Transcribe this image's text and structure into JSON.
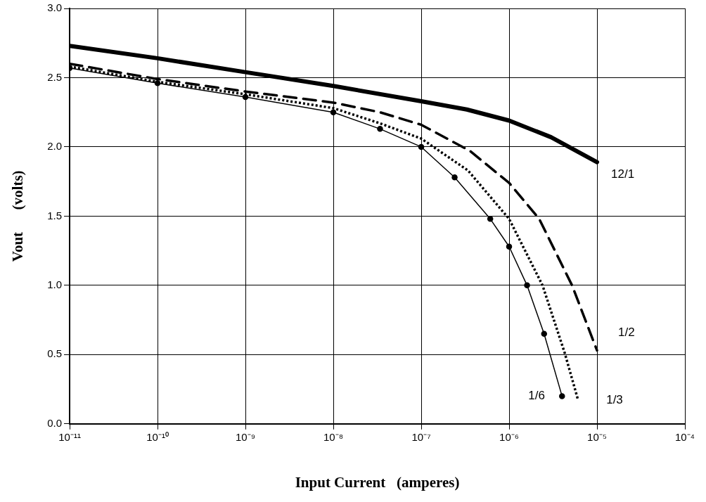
{
  "chart_data": {
    "type": "line",
    "xlabel": "Input Current   (amperes)",
    "ylabel": "Vout      (volts)",
    "log": "x",
    "grid": true,
    "legend": false,
    "xlim": [
      1e-11,
      0.0001
    ],
    "xticks": [
      {
        "value": 1e-11,
        "label": "10⁻¹¹"
      },
      {
        "value": 1e-10,
        "label": "10⁻¹⁰"
      },
      {
        "value": 1e-09,
        "label": "10⁻⁹"
      },
      {
        "value": 1e-08,
        "label": "10⁻⁸"
      },
      {
        "value": 1e-07,
        "label": "10⁻⁷"
      },
      {
        "value": 1e-06,
        "label": "10⁻⁶"
      },
      {
        "value": 1e-05,
        "label": "10⁻⁵"
      },
      {
        "value": 0.0001,
        "label": "10⁻⁴"
      }
    ],
    "ylim": [
      0,
      3
    ],
    "yticks": [
      {
        "value": 0,
        "label": "0.0"
      },
      {
        "value": 0.5,
        "label": "0.5"
      },
      {
        "value": 1,
        "label": "1.0"
      },
      {
        "value": 1.5,
        "label": "1.5"
      },
      {
        "value": 2,
        "label": "2.0"
      },
      {
        "value": 2.5,
        "label": "2.5"
      },
      {
        "value": 3,
        "label": "3.0"
      }
    ],
    "series": [
      {
        "name": "12/1",
        "color": "#000000",
        "line_style": "solid",
        "marker": "none",
        "x": [
          1e-11,
          1e-10,
          1e-09,
          1e-08,
          1e-07,
          3.3e-07,
          1e-06,
          3e-06,
          1e-05
        ],
        "values": [
          2.73,
          2.64,
          2.54,
          2.44,
          2.33,
          2.27,
          2.19,
          2.07,
          1.89
        ]
      },
      {
        "name": "1/2",
        "color": "#000000",
        "line_style": "dashed",
        "marker": "none",
        "x": [
          1e-11,
          1e-10,
          1e-09,
          1e-08,
          3.4e-08,
          1e-07,
          3.6e-07,
          1e-06,
          2.2e-06,
          5.2e-06,
          1e-05
        ],
        "values": [
          2.6,
          2.49,
          2.4,
          2.32,
          2.25,
          2.16,
          1.97,
          1.74,
          1.48,
          1.0,
          0.53
        ]
      },
      {
        "name": "1/3",
        "color": "#000000",
        "line_style": "dotted",
        "marker": "none",
        "x": [
          1e-11,
          1e-10,
          1e-09,
          1e-08,
          3.4e-08,
          1e-07,
          3.4e-07,
          1e-06,
          2.4e-06,
          4.3e-06,
          6.1e-06
        ],
        "values": [
          2.58,
          2.47,
          2.38,
          2.28,
          2.17,
          2.06,
          1.83,
          1.48,
          1.0,
          0.51,
          0.17
        ]
      },
      {
        "name": "1/6",
        "color": "#000000",
        "line_style": "solid",
        "marker": "circle",
        "x": [
          1e-11,
          1e-10,
          1e-09,
          1e-08,
          3.4e-08,
          1e-07,
          2.4e-07,
          6.1e-07,
          1e-06,
          1.6e-06,
          2.5e-06,
          4e-06
        ],
        "values": [
          2.57,
          2.46,
          2.36,
          2.25,
          2.13,
          2.0,
          1.78,
          1.48,
          1.28,
          1.0,
          0.65,
          0.2
        ]
      }
    ]
  }
}
